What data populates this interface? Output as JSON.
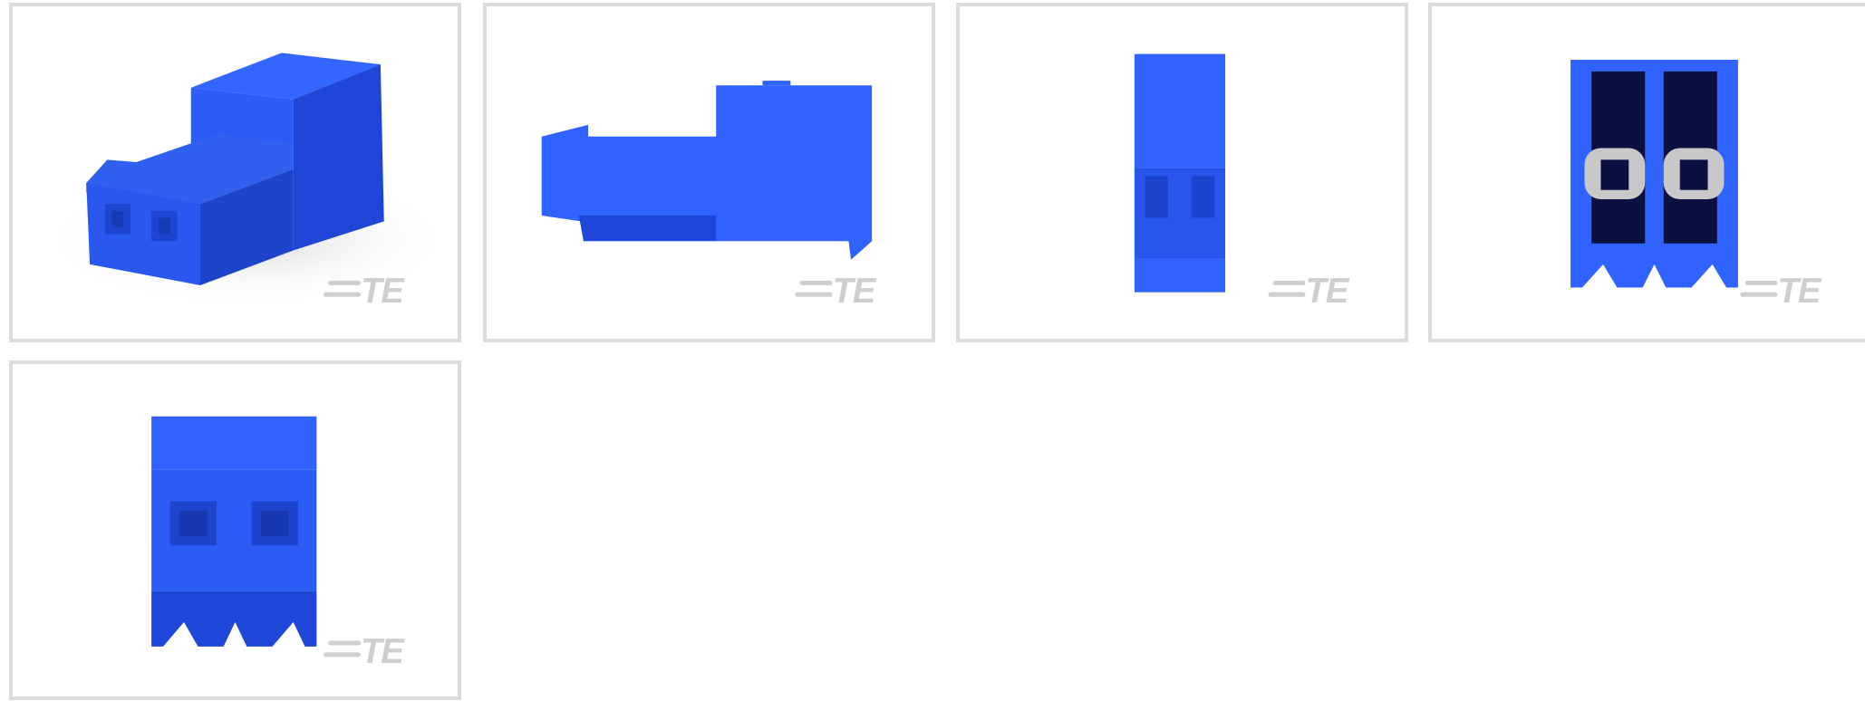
{
  "gallery": {
    "images": [
      {
        "watermark": "TE"
      },
      {
        "watermark": "TE"
      },
      {
        "watermark": "TE"
      },
      {
        "watermark": "TE"
      },
      {
        "watermark": "TE"
      }
    ]
  }
}
